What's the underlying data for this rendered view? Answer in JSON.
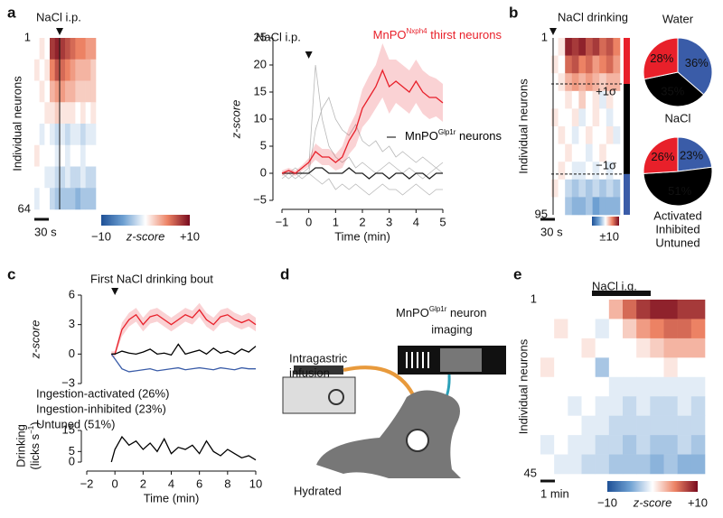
{
  "chart_data": [
    {
      "type": "heatmap",
      "panel": "a",
      "title": "NaCl i.p.",
      "ylabel": "Individual neurons",
      "ylim": [
        1,
        64
      ],
      "yticks": [
        1,
        64
      ],
      "scalebar": "30 s",
      "clim": [
        -10,
        10
      ],
      "cticks": [
        {
          "value": -10,
          "label": "−10"
        },
        {
          "value": 10,
          "label": "+10"
        }
      ],
      "clabel": "z-score",
      "values": [
        [
          0,
          1,
          0,
          8,
          9,
          8,
          7,
          6,
          5,
          5,
          4,
          4
        ],
        [
          1,
          0,
          1,
          5,
          7,
          6,
          5,
          4,
          3,
          3,
          3,
          2
        ],
        [
          0,
          1,
          0,
          3,
          4,
          4,
          3,
          3,
          2,
          2,
          2,
          2
        ],
        [
          0,
          0,
          1,
          1,
          2,
          1,
          1,
          1,
          0,
          1,
          0,
          1
        ],
        [
          0,
          -1,
          0,
          -1,
          -2,
          -1,
          -2,
          -1,
          -1,
          -2,
          -1,
          -1
        ],
        [
          1,
          0,
          0,
          0,
          -1,
          0,
          -1,
          0,
          0,
          -1,
          0,
          0
        ],
        [
          0,
          0,
          -1,
          -1,
          -2,
          -2,
          -1,
          -2,
          -2,
          -1,
          -2,
          -2
        ],
        [
          -1,
          0,
          0,
          -2,
          -3,
          -3,
          -3,
          -3,
          -4,
          -3,
          -3,
          -3
        ]
      ]
    },
    {
      "type": "line",
      "title": "NaCl i.p.",
      "xlabel": "Time (min)",
      "ylabel": "z-score",
      "x": [
        -1,
        -0.75,
        -0.5,
        -0.25,
        0,
        0.25,
        0.5,
        0.75,
        1,
        1.25,
        1.5,
        1.75,
        2,
        2.25,
        2.5,
        2.75,
        3,
        3.25,
        3.5,
        3.75,
        4,
        4.25,
        4.5,
        4.75,
        5
      ],
      "xlim": [
        -1,
        5
      ],
      "xticks": [
        {
          "value": -1,
          "label": "−1"
        },
        0,
        1,
        2,
        3,
        4,
        5
      ],
      "ylim": [
        -5,
        25
      ],
      "yticks": [
        {
          "value": -5,
          "label": "−5"
        },
        0,
        5,
        10,
        15,
        20,
        25
      ],
      "series": [
        {
          "color": "#b8b8b8",
          "values": [
            0,
            0,
            -1,
            0,
            1,
            20,
            10,
            5,
            3,
            2,
            3,
            1,
            2,
            1,
            0,
            1,
            2,
            1,
            0,
            1,
            0,
            -1,
            0,
            1,
            0
          ]
        },
        {
          "color": "#b8b8b8",
          "values": [
            -1,
            0,
            1,
            0,
            0,
            8,
            12,
            14,
            10,
            8,
            7,
            9,
            6,
            5,
            6,
            4,
            5,
            3,
            4,
            3,
            2,
            3,
            2,
            1,
            2
          ]
        },
        {
          "color": "#b8b8b8",
          "values": [
            0,
            -1,
            0,
            -1,
            0,
            -1,
            -2,
            -1,
            -3,
            -2,
            -3,
            -2,
            -3,
            -4,
            -3,
            -2,
            -3,
            -3,
            -4,
            -3,
            -2,
            -3,
            -4,
            -3,
            -3
          ]
        },
        {
          "color": "#222222",
          "values": [
            0,
            0,
            0,
            0,
            0,
            1,
            1,
            0,
            0,
            0,
            1,
            0,
            0,
            -1,
            0,
            0,
            -1,
            0,
            0,
            -1,
            0,
            0,
            -1,
            0,
            0
          ]
        },
        {
          "color": "#e8202a",
          "values": [
            0,
            0.5,
            0,
            1,
            2,
            4,
            3,
            3,
            2,
            3,
            6,
            8,
            12,
            14,
            16,
            19,
            16,
            17,
            16,
            15,
            17,
            15,
            14,
            14,
            13
          ],
          "errors": [
            0.5,
            0.5,
            0.5,
            0.5,
            0.8,
            1.5,
            1.5,
            1.5,
            1.5,
            2,
            2.5,
            3,
            3.5,
            4,
            4,
            5,
            5,
            4,
            4,
            4,
            4,
            4,
            4,
            3.5,
            3.5
          ]
        }
      ],
      "annotations": [
        {
          "text": "MnPO",
          "sup": "Nxph4",
          "post": " thirst neurons",
          "color": "#e8202a"
        },
        {
          "text": "MnPO",
          "sup": "Glp1r",
          "post": " neurons",
          "color": "#000000"
        }
      ]
    },
    {
      "type": "heatmap",
      "panel": "b",
      "title": "NaCl drinking",
      "ylabel": "Individual neurons",
      "ylim": [
        1,
        95
      ],
      "yticks": [
        1,
        95
      ],
      "scalebar": "30 s",
      "clim": [
        -10,
        10
      ],
      "cticks": [
        {
          "value": 10,
          "label": "±10"
        }
      ],
      "sigma_labels": [
        "+1σ",
        "−1σ"
      ],
      "values": [
        [
          0,
          1,
          9,
          8,
          9,
          7,
          8,
          6,
          7,
          5
        ],
        [
          1,
          0,
          6,
          7,
          5,
          6,
          4,
          5,
          6,
          4
        ],
        [
          0,
          1,
          3,
          4,
          3,
          4,
          3,
          2,
          3,
          3
        ],
        [
          0,
          0,
          1,
          0,
          2,
          0,
          1,
          -1,
          1,
          0
        ],
        [
          1,
          0,
          0,
          1,
          -1,
          0,
          1,
          0,
          -1,
          0
        ],
        [
          0,
          1,
          0,
          -1,
          0,
          1,
          0,
          0,
          1,
          -1
        ],
        [
          0,
          0,
          1,
          0,
          0,
          -1,
          0,
          1,
          0,
          0
        ],
        [
          0,
          1,
          0,
          -1,
          -1,
          0,
          -1,
          0,
          -1,
          0
        ],
        [
          1,
          0,
          -2,
          -3,
          -2,
          -3,
          -2,
          -3,
          -2,
          -3
        ],
        [
          0,
          0,
          -3,
          -4,
          -4,
          -3,
          -5,
          -4,
          -4,
          -4
        ]
      ]
    },
    {
      "type": "pie",
      "labels": [
        "Activated",
        "Inhibited",
        "Untuned"
      ],
      "colors": [
        "#e8202a",
        "#3a5ca8",
        "#000000"
      ],
      "pies": [
        {
          "title": "Water",
          "values": [
            28,
            36,
            35
          ],
          "value_labels": [
            "28%",
            "36%",
            "35%"
          ]
        },
        {
          "title": "NaCl",
          "values": [
            26,
            23,
            51
          ],
          "value_labels": [
            "26%",
            "23%",
            "51%"
          ]
        }
      ]
    },
    {
      "type": "line",
      "panel": "c",
      "title": "First NaCl drinking bout",
      "xlabel": "Time (min)",
      "ylabel": "z-score",
      "x": [
        -0.25,
        0,
        0.5,
        1,
        1.5,
        2,
        2.5,
        3,
        3.5,
        4,
        4.5,
        5,
        5.5,
        6,
        6.5,
        7,
        7.5,
        8,
        8.5,
        9,
        9.5,
        10
      ],
      "xlim": [
        -2,
        10
      ],
      "xticks": [
        {
          "value": -2,
          "label": "−2"
        },
        0,
        2,
        4,
        6,
        8,
        10
      ],
      "ylim": [
        -3,
        6
      ],
      "yticks": [
        {
          "value": -3,
          "label": "−3"
        },
        0,
        3,
        6
      ],
      "series": [
        {
          "name": "Ingestion-activated (26%)",
          "color": "#e8202a",
          "values": [
            0,
            0,
            2.5,
            3.5,
            4,
            3,
            3.8,
            4,
            3.5,
            3,
            3.5,
            4,
            3.7,
            4.5,
            3.5,
            3,
            3.8,
            4,
            3.5,
            3.2,
            3.5,
            3
          ],
          "errors": [
            0.3,
            0.3,
            0.7,
            0.7,
            0.7,
            0.7,
            0.7,
            0.7,
            0.7,
            0.7,
            0.7,
            0.7,
            0.7,
            0.7,
            0.7,
            0.7,
            0.7,
            0.7,
            0.7,
            0.7,
            0.7,
            0.7
          ]
        },
        {
          "name": "Ingestion-inhibited (23%)",
          "color": "#3a5ca8",
          "values": [
            0,
            -0.5,
            -1.5,
            -1.8,
            -1.7,
            -1.6,
            -1.5,
            -1.7,
            -1.6,
            -1.5,
            -1.4,
            -1.6,
            -1.5,
            -1.4,
            -1.5,
            -1.6,
            -1.4,
            -1.5,
            -1.6,
            -1.4,
            -1.5,
            -1.5
          ]
        },
        {
          "name": "Untuned (51%)",
          "color": "#000000",
          "values": [
            0,
            0,
            0.3,
            0.1,
            0,
            0.2,
            0.5,
            0,
            0.1,
            -0.1,
            1,
            0,
            0.2,
            0.4,
            0,
            0.6,
            0.1,
            0.3,
            0,
            0.5,
            0.2,
            0.8
          ]
        }
      ],
      "drinking": {
        "ylabel": {
          "line1": "Drinking",
          "line2": "(licks s",
          "sup": "−1",
          "end": ")"
        },
        "ylim": [
          0,
          15
        ],
        "yticks": [
          0,
          5,
          15
        ],
        "series": [
          {
            "color": "#000000",
            "values": [
              0,
              6,
              12,
              8,
              10,
              6,
              9,
              5,
              11,
              4,
              7,
              6,
              8,
              4,
              10,
              5,
              3,
              6,
              4,
              2,
              3,
              1
            ]
          }
        ]
      }
    },
    {
      "type": "heatmap",
      "panel": "e",
      "title": "NaCl i.g.",
      "ylabel": "Individual neurons",
      "ylim": [
        1,
        45
      ],
      "yticks": [
        1,
        45
      ],
      "scalebar": "1 min",
      "clim": [
        -10,
        10
      ],
      "cticks": [
        {
          "value": -10,
          "label": "−10"
        },
        {
          "value": 10,
          "label": "+10"
        }
      ],
      "clabel": "z-score",
      "values": [
        [
          0,
          0,
          0,
          0,
          0,
          3,
          6,
          8,
          9,
          9,
          8,
          8
        ],
        [
          0,
          1,
          0,
          0,
          -1,
          0,
          2,
          4,
          5,
          6,
          6,
          5
        ],
        [
          0,
          0,
          0,
          1,
          0,
          0,
          0,
          1,
          2,
          3,
          3,
          3
        ],
        [
          1,
          0,
          0,
          0,
          -3,
          0,
          0,
          0,
          0,
          1,
          0,
          0
        ],
        [
          0,
          0,
          0,
          0,
          0,
          -1,
          -1,
          -1,
          -1,
          -1,
          -1,
          -1
        ],
        [
          0,
          0,
          -1,
          0,
          -1,
          -1,
          -2,
          -1,
          -2,
          -2,
          -1,
          -2
        ],
        [
          0,
          0,
          0,
          -1,
          -1,
          -2,
          -2,
          -2,
          -2,
          -2,
          -2,
          -2
        ],
        [
          -1,
          0,
          -1,
          -1,
          -2,
          -2,
          -3,
          -2,
          -3,
          -3,
          -2,
          -3
        ],
        [
          0,
          -1,
          -1,
          -2,
          -2,
          -3,
          -3,
          -3,
          -4,
          -3,
          -4,
          -4
        ]
      ]
    }
  ],
  "diagram": {
    "panel": "d",
    "infusion": [
      "Intragastric",
      "infusion"
    ],
    "imaging": {
      "pre": "MnPO",
      "sup": "Glp1r",
      "post": " neuron",
      "line2": "imaging"
    },
    "state": "Hydrated"
  }
}
